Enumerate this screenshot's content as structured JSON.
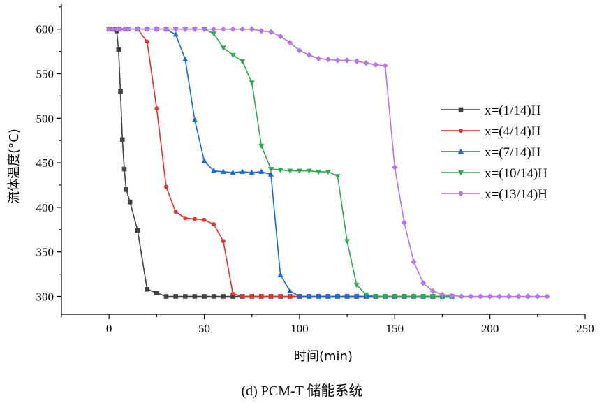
{
  "chart_data": {
    "type": "line",
    "xlabel": "时间(min)",
    "ylabel": "流体温度(°C)",
    "xlim": [
      -25,
      250
    ],
    "ylim": [
      280,
      628
    ],
    "xticks": [
      0,
      50,
      100,
      150,
      200,
      250
    ],
    "yticks": [
      300,
      350,
      400,
      450,
      500,
      550,
      600
    ],
    "grid": false,
    "legend_position": "right",
    "series": [
      {
        "name": "x=(1/14)H",
        "color": "#404040",
        "marker": "square",
        "points": [
          [
            0,
            600
          ],
          [
            2,
            600
          ],
          [
            3,
            600
          ],
          [
            4,
            598
          ],
          [
            5,
            577
          ],
          [
            6,
            530
          ],
          [
            7,
            476
          ],
          [
            8,
            443
          ],
          [
            9,
            420
          ],
          [
            11,
            406
          ],
          [
            15,
            374
          ],
          [
            20,
            308
          ],
          [
            25,
            304
          ],
          [
            30,
            300
          ],
          [
            35,
            300
          ],
          [
            40,
            300
          ],
          [
            45,
            300
          ],
          [
            50,
            300
          ],
          [
            55,
            300
          ],
          [
            60,
            300
          ],
          [
            65,
            300
          ],
          [
            70,
            300
          ],
          [
            75,
            300
          ],
          [
            80,
            300
          ],
          [
            85,
            300
          ],
          [
            90,
            300
          ],
          [
            95,
            300
          ],
          [
            100,
            300
          ],
          [
            105,
            300
          ],
          [
            110,
            300
          ],
          [
            115,
            300
          ],
          [
            120,
            300
          ],
          [
            125,
            300
          ],
          [
            130,
            300
          ],
          [
            135,
            300
          ],
          [
            140,
            300
          ],
          [
            145,
            300
          ],
          [
            150,
            300
          ],
          [
            155,
            300
          ],
          [
            160,
            300
          ],
          [
            165,
            300
          ],
          [
            170,
            300
          ],
          [
            175,
            300
          ],
          [
            180,
            300
          ]
        ]
      },
      {
        "name": "x=(4/14)H",
        "color": "#e8302c",
        "marker": "dot",
        "points": [
          [
            0,
            600
          ],
          [
            5,
            600
          ],
          [
            10,
            600
          ],
          [
            15,
            600
          ],
          [
            20,
            586
          ],
          [
            25,
            511
          ],
          [
            30,
            423
          ],
          [
            35,
            395
          ],
          [
            40,
            388
          ],
          [
            45,
            387
          ],
          [
            50,
            386
          ],
          [
            55,
            381
          ],
          [
            60,
            362
          ],
          [
            65,
            303
          ],
          [
            70,
            300
          ],
          [
            75,
            300
          ],
          [
            80,
            300
          ],
          [
            85,
            300
          ],
          [
            90,
            300
          ],
          [
            95,
            300
          ],
          [
            100,
            300
          ],
          [
            105,
            300
          ],
          [
            110,
            300
          ],
          [
            115,
            300
          ],
          [
            120,
            300
          ],
          [
            125,
            300
          ],
          [
            130,
            300
          ],
          [
            135,
            300
          ],
          [
            140,
            300
          ],
          [
            145,
            300
          ],
          [
            150,
            300
          ],
          [
            155,
            300
          ],
          [
            160,
            300
          ],
          [
            165,
            300
          ],
          [
            170,
            300
          ],
          [
            175,
            300
          ],
          [
            180,
            300
          ]
        ]
      },
      {
        "name": "x=(7/14)H",
        "color": "#1769d6",
        "marker": "triangle-up",
        "points": [
          [
            0,
            600
          ],
          [
            5,
            600
          ],
          [
            10,
            600
          ],
          [
            15,
            600
          ],
          [
            20,
            600
          ],
          [
            25,
            600
          ],
          [
            30,
            600
          ],
          [
            35,
            594
          ],
          [
            40,
            566
          ],
          [
            45,
            498
          ],
          [
            50,
            452
          ],
          [
            55,
            441
          ],
          [
            60,
            440
          ],
          [
            65,
            439
          ],
          [
            70,
            440
          ],
          [
            75,
            439
          ],
          [
            80,
            440
          ],
          [
            85,
            437
          ],
          [
            90,
            324
          ],
          [
            95,
            306
          ],
          [
            100,
            300
          ],
          [
            105,
            300
          ],
          [
            110,
            300
          ],
          [
            115,
            300
          ],
          [
            120,
            300
          ],
          [
            125,
            300
          ],
          [
            130,
            300
          ],
          [
            135,
            300
          ],
          [
            140,
            300
          ],
          [
            145,
            300
          ],
          [
            150,
            300
          ],
          [
            155,
            300
          ],
          [
            160,
            300
          ],
          [
            165,
            300
          ],
          [
            170,
            300
          ],
          [
            175,
            300
          ],
          [
            180,
            300
          ]
        ]
      },
      {
        "name": "x=(10/14)H",
        "color": "#2fa84f",
        "marker": "triangle-down",
        "points": [
          [
            0,
            600
          ],
          [
            5,
            600
          ],
          [
            10,
            600
          ],
          [
            15,
            600
          ],
          [
            20,
            600
          ],
          [
            25,
            600
          ],
          [
            30,
            600
          ],
          [
            35,
            600
          ],
          [
            40,
            600
          ],
          [
            45,
            600
          ],
          [
            50,
            600
          ],
          [
            55,
            595
          ],
          [
            60,
            579
          ],
          [
            65,
            571
          ],
          [
            70,
            564
          ],
          [
            75,
            540
          ],
          [
            80,
            469
          ],
          [
            85,
            443
          ],
          [
            90,
            442
          ],
          [
            95,
            441
          ],
          [
            100,
            441
          ],
          [
            105,
            441
          ],
          [
            110,
            440
          ],
          [
            115,
            440
          ],
          [
            120,
            435
          ],
          [
            125,
            362
          ],
          [
            130,
            313
          ],
          [
            135,
            302
          ],
          [
            140,
            300
          ],
          [
            145,
            300
          ],
          [
            150,
            300
          ],
          [
            155,
            300
          ],
          [
            160,
            300
          ],
          [
            165,
            300
          ],
          [
            170,
            300
          ],
          [
            175,
            300
          ],
          [
            180,
            300
          ]
        ]
      },
      {
        "name": "x=(13/14)H",
        "color": "#b575e8",
        "marker": "diamond",
        "points": [
          [
            0,
            600
          ],
          [
            2,
            600
          ],
          [
            4,
            600
          ],
          [
            6,
            600
          ],
          [
            8,
            600
          ],
          [
            10,
            600
          ],
          [
            15,
            600
          ],
          [
            20,
            600
          ],
          [
            25,
            600
          ],
          [
            30,
            600
          ],
          [
            35,
            600
          ],
          [
            40,
            600
          ],
          [
            45,
            600
          ],
          [
            50,
            600
          ],
          [
            55,
            600
          ],
          [
            60,
            600
          ],
          [
            65,
            600
          ],
          [
            70,
            600
          ],
          [
            75,
            600
          ],
          [
            80,
            598
          ],
          [
            85,
            597
          ],
          [
            90,
            592
          ],
          [
            95,
            585
          ],
          [
            100,
            576
          ],
          [
            105,
            571
          ],
          [
            110,
            567
          ],
          [
            115,
            566
          ],
          [
            120,
            565
          ],
          [
            125,
            565
          ],
          [
            130,
            564
          ],
          [
            135,
            562
          ],
          [
            140,
            560
          ],
          [
            145,
            559
          ],
          [
            150,
            445
          ],
          [
            155,
            383
          ],
          [
            160,
            339
          ],
          [
            165,
            315
          ],
          [
            170,
            306
          ],
          [
            175,
            302
          ],
          [
            180,
            301
          ],
          [
            185,
            300
          ],
          [
            190,
            300
          ],
          [
            195,
            300
          ],
          [
            200,
            300
          ],
          [
            205,
            300
          ],
          [
            210,
            300
          ],
          [
            215,
            300
          ],
          [
            220,
            300
          ],
          [
            225,
            300
          ],
          [
            230,
            300
          ]
        ]
      }
    ]
  },
  "caption": "(d) PCM-T 储能系统"
}
